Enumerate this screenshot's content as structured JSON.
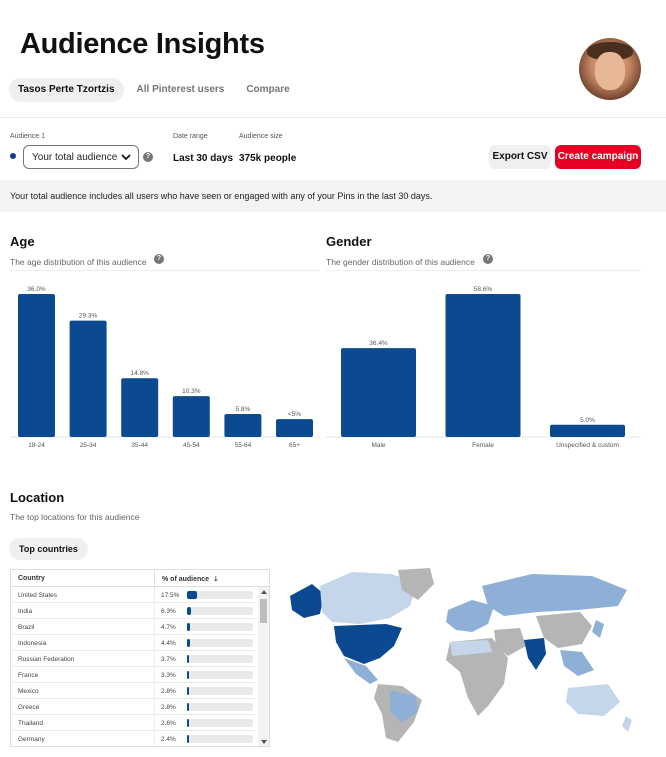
{
  "header": {
    "title": "Audience Insights"
  },
  "tabs": [
    {
      "label": "Tasos Perte Tzortzis",
      "active": true
    },
    {
      "label": "All Pinterest users",
      "active": false
    },
    {
      "label": "Compare",
      "active": false
    }
  ],
  "controls": {
    "audience_label": "Audience 1",
    "audience_value": "Your total audience",
    "date_range_label": "Date range",
    "date_range_value": "Last 30 days",
    "audience_size_label": "Audience size",
    "audience_size_value": "375k people",
    "export_label": "Export CSV",
    "create_label": "Create campaign",
    "help_glyph": "?"
  },
  "banner": "Your total audience includes all users who have seen or engaged with any of your Pins in the last 30 days.",
  "age": {
    "title": "Age",
    "subtitle": "The age distribution of this audience"
  },
  "gender": {
    "title": "Gender",
    "subtitle": "The gender distribution of this audience"
  },
  "location": {
    "title": "Location",
    "subtitle": "The top locations for this audience",
    "pill": "Top countries",
    "col_country": "Country",
    "col_pct": "% of audience",
    "sort_glyph": "🡓"
  },
  "colors": {
    "bar": "#0b4a91",
    "red": "#e60023",
    "map_dark": "#0b4a91",
    "map_mid": "#8fb0d6",
    "map_light": "#c6d6ea",
    "map_gray": "#b5b5b5"
  },
  "chart_data": [
    {
      "type": "bar",
      "categories": [
        "18-24",
        "25-34",
        "35-44",
        "45-54",
        "55-64",
        "65+"
      ],
      "values": [
        36.0,
        29.3,
        14.8,
        10.3,
        5.8,
        4.5
      ],
      "labels": [
        "36.0%",
        "29.3%",
        "14.8%",
        "10.3%",
        "5.8%",
        "<5%"
      ],
      "ylim": [
        0,
        36
      ]
    },
    {
      "type": "bar",
      "categories": [
        "Male",
        "Female",
        "Unspecified & custom"
      ],
      "values": [
        36.4,
        58.6,
        5.0
      ],
      "labels": [
        "36.4%",
        "58.6%",
        "5.0%"
      ],
      "ylim": [
        0,
        58.6
      ]
    },
    {
      "type": "table",
      "rows": [
        {
          "country": "United States",
          "pct_label": "17.5%",
          "pct": 17.5
        },
        {
          "country": "India",
          "pct_label": "6.3%",
          "pct": 6.3
        },
        {
          "country": "Brazil",
          "pct_label": "4.7%",
          "pct": 4.7
        },
        {
          "country": "Indonesia",
          "pct_label": "4.4%",
          "pct": 4.4
        },
        {
          "country": "Russian Federation",
          "pct_label": "3.7%",
          "pct": 3.7
        },
        {
          "country": "France",
          "pct_label": "3.3%",
          "pct": 3.3
        },
        {
          "country": "Mexico",
          "pct_label": "2.8%",
          "pct": 2.8
        },
        {
          "country": "Greece",
          "pct_label": "2.8%",
          "pct": 2.8
        },
        {
          "country": "Thailand",
          "pct_label": "2.6%",
          "pct": 2.6
        },
        {
          "country": "Germany",
          "pct_label": "2.4%",
          "pct": 2.4
        }
      ]
    }
  ]
}
